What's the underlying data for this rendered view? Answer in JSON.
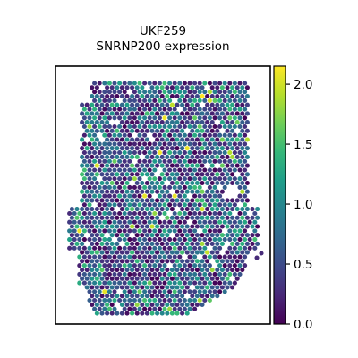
{
  "chart_data": {
    "type": "scatter",
    "subtype": "spatial-transcriptomics-hex-spots",
    "title_line1": "UKF259",
    "title_line2": "SNRNP200 expression",
    "xlabel": "",
    "ylabel": "",
    "colormap": "viridis",
    "color_range": [
      0.0,
      2.15
    ],
    "colorbar": {
      "ticks": [
        0.0,
        0.5,
        1.0,
        1.5,
        2.0
      ],
      "tick_labels": [
        "0.0",
        "0.5",
        "1.0",
        "1.5",
        "2.0"
      ],
      "position": "right"
    },
    "summary": "Thousands of tissue spots, mostly low expression (0.0–0.8, dark purple/blue) with scattered teal spots near 1.0 and rare yellow-green spots up to ~2.1",
    "value_distribution": {
      "low_0_to_0.5": 0.5,
      "mid_0.5_to_1.0": 0.32,
      "high_1.0_to_1.5": 0.15,
      "very_high_above_1.5": 0.03
    }
  },
  "colors": {
    "viridis_stops": [
      "#440154",
      "#482878",
      "#3e4989",
      "#31688e",
      "#26828e",
      "#1f9e89",
      "#35b779",
      "#6ece58",
      "#b5de2b",
      "#fde725"
    ],
    "frame": "#000000",
    "background": "#ffffff"
  }
}
